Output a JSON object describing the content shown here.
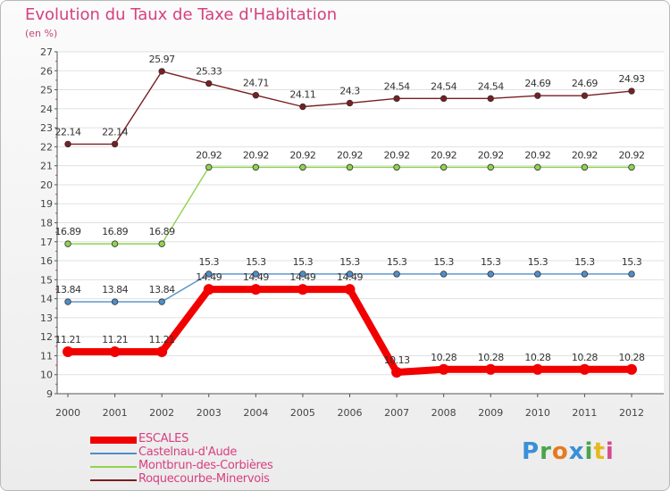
{
  "chart_data": {
    "type": "line",
    "title": "Evolution du Taux de Taxe d'Habitation",
    "subtitle": "(en %)",
    "xlabel": "",
    "ylabel": "",
    "ylim": [
      9,
      27
    ],
    "y_ticks": [
      9,
      10,
      11,
      12,
      13,
      14,
      15,
      16,
      17,
      18,
      19,
      20,
      21,
      22,
      23,
      24,
      25,
      26,
      27
    ],
    "categories": [
      "2000",
      "2001",
      "2002",
      "2003",
      "2004",
      "2005",
      "2006",
      "2007",
      "2008",
      "2009",
      "2010",
      "2011",
      "2012"
    ],
    "series": [
      {
        "name": "Roquecourbe-Minervois",
        "color": "#7a1e22",
        "values": [
          22.14,
          22.14,
          25.97,
          25.33,
          24.71,
          24.11,
          24.3,
          24.54,
          24.54,
          24.54,
          24.69,
          24.69,
          24.93
        ],
        "labels": [
          "22.14",
          "22.14",
          "25.97",
          "25.33",
          "24.71",
          "24.11",
          "24.3",
          "24.54",
          "24.54",
          "24.54",
          "24.69",
          "24.69",
          "24.93"
        ]
      },
      {
        "name": "Montbrun-des-Corbières",
        "color": "#8fd350",
        "values": [
          16.89,
          16.89,
          16.89,
          20.92,
          20.92,
          20.92,
          20.92,
          20.92,
          20.92,
          20.92,
          20.92,
          20.92,
          20.92
        ],
        "labels": [
          "16.89",
          "16.89",
          "16.89",
          "20.92",
          "20.92",
          "20.92",
          "20.92",
          "20.92",
          "20.92",
          "20.92",
          "20.92",
          "20.92",
          "20.92"
        ]
      },
      {
        "name": "Castelnau-d'Aude",
        "color": "#4f8ec9",
        "values": [
          13.84,
          13.84,
          13.84,
          15.3,
          15.3,
          15.3,
          15.3,
          15.3,
          15.3,
          15.3,
          15.3,
          15.3,
          15.3
        ],
        "labels": [
          "13.84",
          "13.84",
          "13.84",
          "15.3",
          "15.3",
          "15.3",
          "15.3",
          "15.3",
          "15.3",
          "15.3",
          "15.3",
          "15.3",
          "15.3"
        ]
      },
      {
        "name": "ESCALES",
        "color": "#f20000",
        "values": [
          11.21,
          11.21,
          11.21,
          14.49,
          14.49,
          14.49,
          14.49,
          10.13,
          10.28,
          10.28,
          10.28,
          10.28,
          10.28
        ],
        "labels": [
          "11.21",
          "11.21",
          "11.21",
          "14.49",
          "14.49",
          "14.49",
          "14.49",
          "10.13",
          "10.28",
          "10.28",
          "10.28",
          "10.28",
          "10.28"
        ]
      }
    ],
    "legend": {
      "position": "bottom-left",
      "items": [
        "ESCALES",
        "Castelnau-d'Aude",
        "Montbrun-des-Corbières",
        "Roquecourbe-Minervois"
      ]
    }
  },
  "brand": {
    "letters": [
      "P",
      "r",
      "o",
      "x",
      "i",
      "t",
      "i"
    ],
    "colors": [
      "#3b8fd8",
      "#4aa44a",
      "#e67a1e",
      "#3b8fd8",
      "#4aa44a",
      "#e6b81e",
      "#d64a8f"
    ]
  }
}
